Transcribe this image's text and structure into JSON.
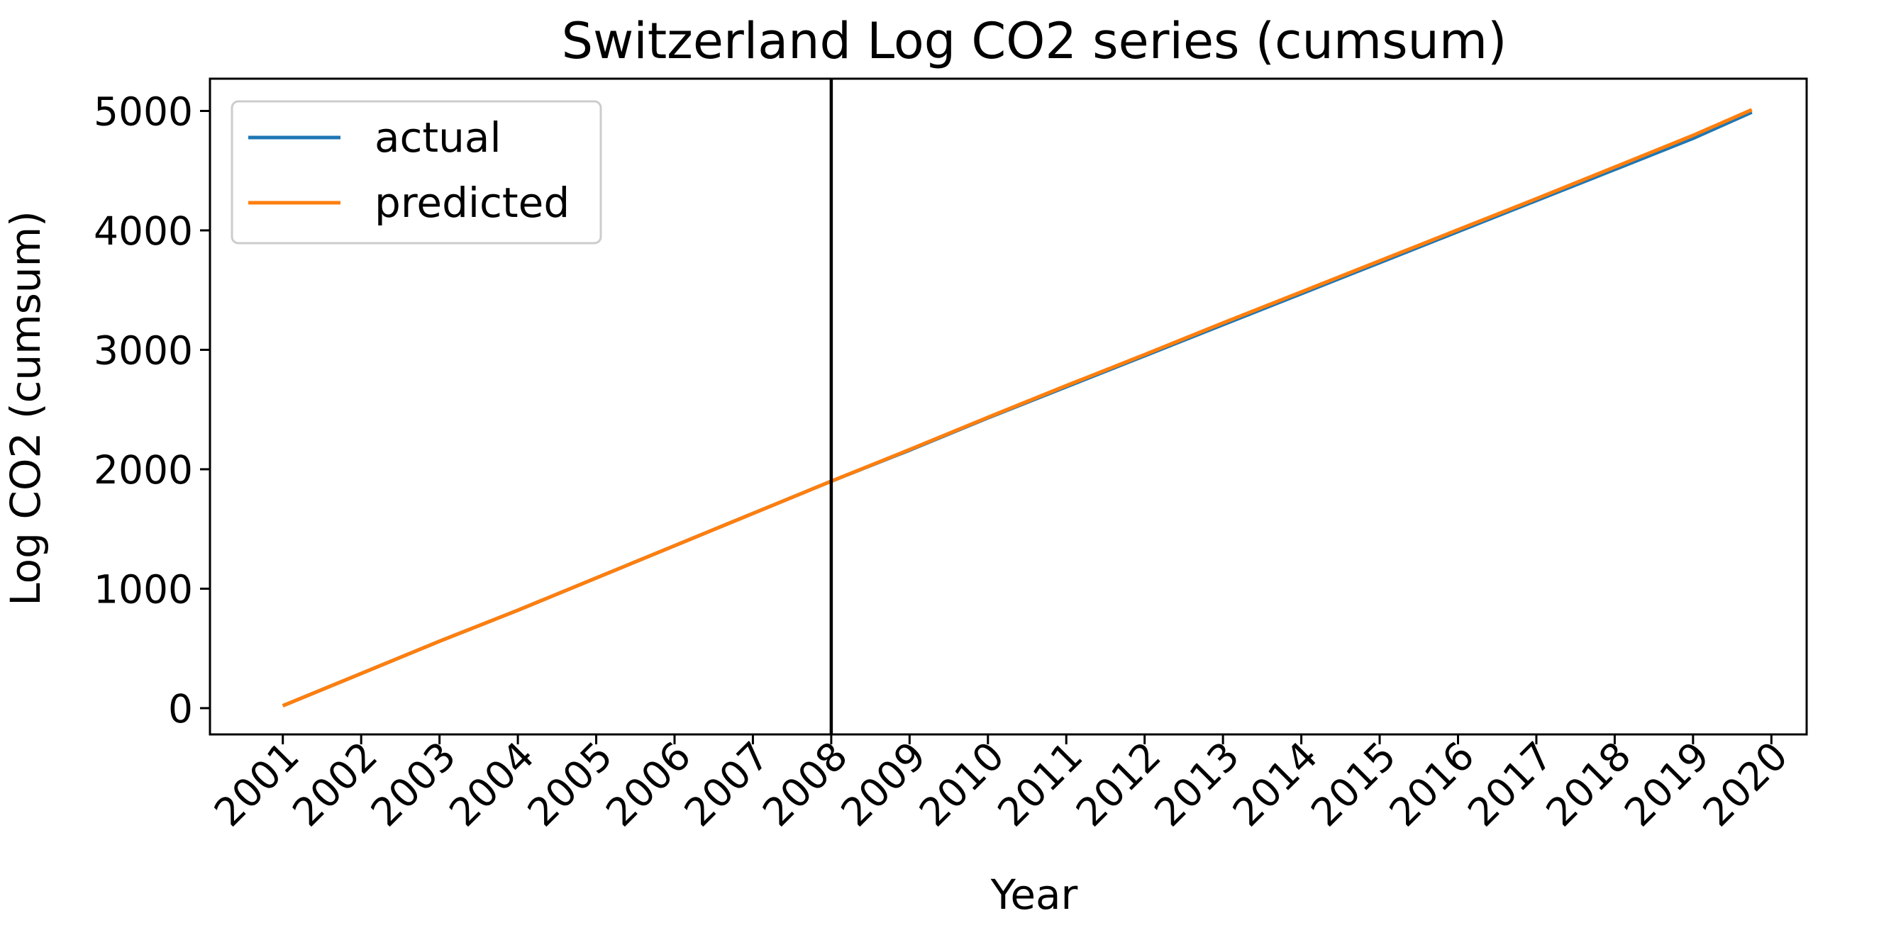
{
  "chart_data": {
    "type": "line",
    "title": "Switzerland Log CO2 series (cumsum)",
    "xlabel": "Year",
    "ylabel": "Log CO2 (cumsum)",
    "x_ticks": [
      "2001",
      "2002",
      "2003",
      "2004",
      "2005",
      "2006",
      "2007",
      "2008",
      "2009",
      "2010",
      "2011",
      "2012",
      "2013",
      "2014",
      "2015",
      "2016",
      "2017",
      "2018",
      "2019",
      "2020"
    ],
    "y_ticks": [
      "0",
      "1000",
      "2000",
      "3000",
      "4000",
      "5000"
    ],
    "xlim": [
      2000.07,
      2020.45
    ],
    "ylim": [
      -220,
      5270
    ],
    "vertical_line_x": 2008.0,
    "legend_position": "upper left",
    "grid": false,
    "series": [
      {
        "name": "actual",
        "color": "#1f77b4",
        "x": [
          2001.0,
          2002.0,
          2003.0,
          2004.0,
          2005.0,
          2006.0,
          2007.0,
          2008.0,
          2009.0,
          2010.0,
          2011.0,
          2012.0,
          2013.0,
          2014.0,
          2015.0,
          2016.0,
          2017.0,
          2018.0,
          2019.0,
          2019.75
        ],
        "y": [
          20,
          290,
          560,
          820,
          1090,
          1360,
          1630,
          1900,
          2160,
          2430,
          2690,
          2950,
          3210,
          3470,
          3730,
          3990,
          4250,
          4510,
          4770,
          4990
        ]
      },
      {
        "name": "predicted",
        "color": "#ff7f0e",
        "x": [
          2001.0,
          2002.0,
          2003.0,
          2004.0,
          2005.0,
          2006.0,
          2007.0,
          2008.0,
          2009.0,
          2010.0,
          2011.0,
          2012.0,
          2013.0,
          2014.0,
          2015.0,
          2016.0,
          2017.0,
          2018.0,
          2019.0,
          2019.75
        ],
        "y": [
          20,
          290,
          560,
          820,
          1090,
          1360,
          1630,
          1900,
          2165,
          2435,
          2700,
          2960,
          3225,
          3485,
          3745,
          4005,
          4265,
          4530,
          4795,
          5010
        ]
      }
    ]
  }
}
